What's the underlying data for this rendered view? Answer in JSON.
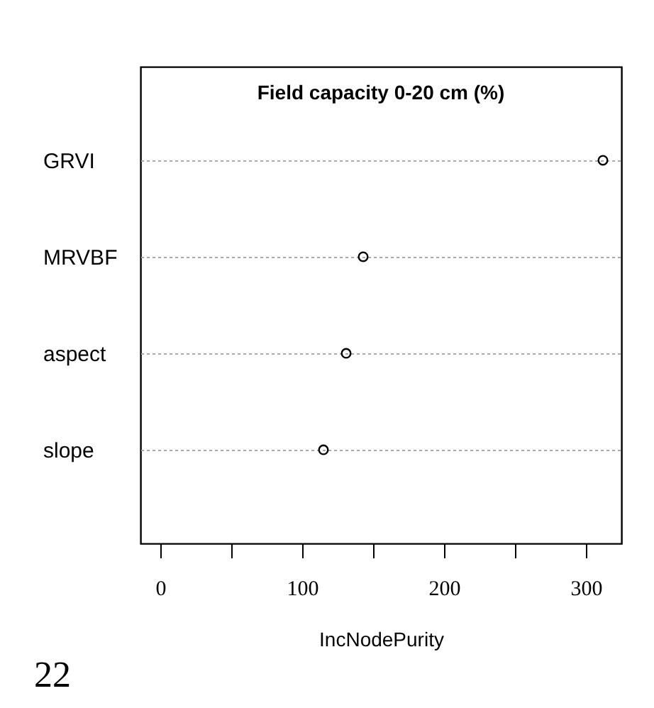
{
  "chart_data": {
    "type": "scatter",
    "title": "Field capacity 0-20 cm (%)",
    "xlabel": "IncNodePurity",
    "orientation": "horizontal",
    "categories": [
      "GRVI",
      "MRVBF",
      "aspect",
      "slope"
    ],
    "values": [
      312,
      143,
      131,
      115
    ],
    "color": "#000000",
    "marker": "circle",
    "grid": "y",
    "xlim": [
      -14,
      325
    ],
    "xticks": [
      0,
      {
        "value": 50,
        "label": null
      },
      100,
      {
        "value": 150,
        "label": null
      },
      200,
      {
        "value": 250,
        "label": null
      },
      300
    ],
    "annotations": [
      "22"
    ]
  }
}
